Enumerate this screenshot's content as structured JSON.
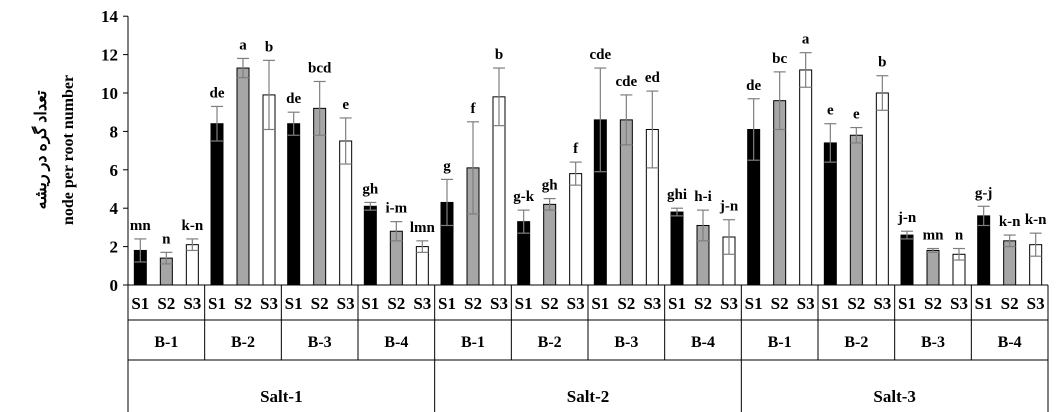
{
  "chart_data": {
    "type": "bar",
    "y_axis": {
      "label_lines": [
        "تعداد گره در ریشه",
        "node per root number"
      ],
      "ylim": [
        0,
        14
      ],
      "ticks": [
        "0",
        "2",
        "4",
        "6",
        "8",
        "10",
        "12",
        "14"
      ]
    },
    "series_order": [
      "S1",
      "S2",
      "S3"
    ],
    "series_colors": {
      "S1": "#000000",
      "S2": "#a6a6a6",
      "S3": "#ffffff"
    },
    "groups": [
      {
        "salt": "Salt-1",
        "strains": [
          {
            "name": "B-1",
            "bars": [
              {
                "series": "S1",
                "value": 1.8,
                "error": 0.6,
                "label": "mn"
              },
              {
                "series": "S2",
                "value": 1.4,
                "error": 0.3,
                "label": "n"
              },
              {
                "series": "S3",
                "value": 2.1,
                "error": 0.3,
                "label": "k-n"
              }
            ]
          },
          {
            "name": "B-2",
            "bars": [
              {
                "series": "S1",
                "value": 8.4,
                "error": 0.9,
                "label": "de"
              },
              {
                "series": "S2",
                "value": 11.3,
                "error": 0.5,
                "label": "a"
              },
              {
                "series": "S3",
                "value": 9.9,
                "error": 1.8,
                "label": "b"
              }
            ]
          },
          {
            "name": "B-3",
            "bars": [
              {
                "series": "S1",
                "value": 8.4,
                "error": 0.6,
                "label": "de"
              },
              {
                "series": "S2",
                "value": 9.2,
                "error": 1.4,
                "label": "bcd"
              },
              {
                "series": "S3",
                "value": 7.5,
                "error": 1.2,
                "label": "e"
              }
            ]
          },
          {
            "name": "B-4",
            "bars": [
              {
                "series": "S1",
                "value": 4.1,
                "error": 0.2,
                "label": "gh"
              },
              {
                "series": "S2",
                "value": 2.8,
                "error": 0.5,
                "label": "i-m"
              },
              {
                "series": "S3",
                "value": 2.0,
                "error": 0.3,
                "label": "lmn"
              }
            ]
          }
        ]
      },
      {
        "salt": "Salt-2",
        "strains": [
          {
            "name": "B-1",
            "bars": [
              {
                "series": "S1",
                "value": 4.3,
                "error": 1.2,
                "label": "g"
              },
              {
                "series": "S2",
                "value": 6.1,
                "error": 2.4,
                "label": "f"
              },
              {
                "series": "S3",
                "value": 9.8,
                "error": 1.5,
                "label": "b"
              }
            ]
          },
          {
            "name": "B-2",
            "bars": [
              {
                "series": "S1",
                "value": 3.3,
                "error": 0.6,
                "label": "g-k"
              },
              {
                "series": "S2",
                "value": 4.2,
                "error": 0.3,
                "label": "gh"
              },
              {
                "series": "S3",
                "value": 5.8,
                "error": 0.6,
                "label": "f"
              }
            ]
          },
          {
            "name": "B-3",
            "bars": [
              {
                "series": "S1",
                "value": 8.6,
                "error": 2.7,
                "label": "cde"
              },
              {
                "series": "S2",
                "value": 8.6,
                "error": 1.3,
                "label": "cde"
              },
              {
                "series": "S3",
                "value": 8.1,
                "error": 2.0,
                "label": "ed"
              }
            ]
          },
          {
            "name": "B-4",
            "bars": [
              {
                "series": "S1",
                "value": 3.8,
                "error": 0.2,
                "label": "ghi"
              },
              {
                "series": "S2",
                "value": 3.1,
                "error": 0.8,
                "label": "h-i"
              },
              {
                "series": "S3",
                "value": 2.5,
                "error": 0.9,
                "label": "j-n"
              }
            ]
          }
        ]
      },
      {
        "salt": "Salt-3",
        "strains": [
          {
            "name": "B-1",
            "bars": [
              {
                "series": "S1",
                "value": 8.1,
                "error": 1.6,
                "label": "de"
              },
              {
                "series": "S2",
                "value": 9.6,
                "error": 1.5,
                "label": "bc"
              },
              {
                "series": "S3",
                "value": 11.2,
                "error": 0.9,
                "label": "a"
              }
            ]
          },
          {
            "name": "B-2",
            "bars": [
              {
                "series": "S1",
                "value": 7.4,
                "error": 1.0,
                "label": "e"
              },
              {
                "series": "S2",
                "value": 7.8,
                "error": 0.4,
                "label": "e"
              },
              {
                "series": "S3",
                "value": 10.0,
                "error": 0.9,
                "label": "b"
              }
            ]
          },
          {
            "name": "B-3",
            "bars": [
              {
                "series": "S1",
                "value": 2.6,
                "error": 0.2,
                "label": "j-n"
              },
              {
                "series": "S2",
                "value": 1.8,
                "error": 0.1,
                "label": "mn"
              },
              {
                "series": "S3",
                "value": 1.6,
                "error": 0.3,
                "label": "n"
              }
            ]
          },
          {
            "name": "B-4",
            "bars": [
              {
                "series": "S1",
                "value": 3.6,
                "error": 0.5,
                "label": "g-j"
              },
              {
                "series": "S2",
                "value": 2.3,
                "error": 0.3,
                "label": "k-n"
              },
              {
                "series": "S3",
                "value": 2.1,
                "error": 0.6,
                "label": "k-n"
              }
            ]
          }
        ]
      }
    ]
  }
}
